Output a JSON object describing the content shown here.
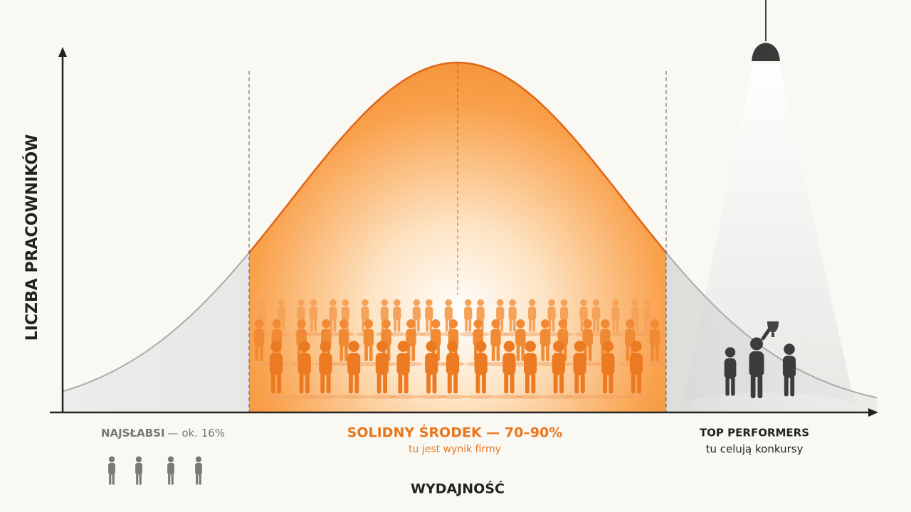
{
  "axes": {
    "y_label": "LICZBA PRACOWNIKÓW",
    "x_label": "WYDAJNOŚĆ"
  },
  "segments": [
    {
      "title": "NAJSŁABSI",
      "note": "— ok. 16%"
    },
    {
      "title": "SOLIDNY ŚRODEK — 70–90%",
      "note": "tu jest wynik firmy"
    },
    {
      "title": "TOP PERFORMERS",
      "note": "tu celują konkursy"
    }
  ]
}
